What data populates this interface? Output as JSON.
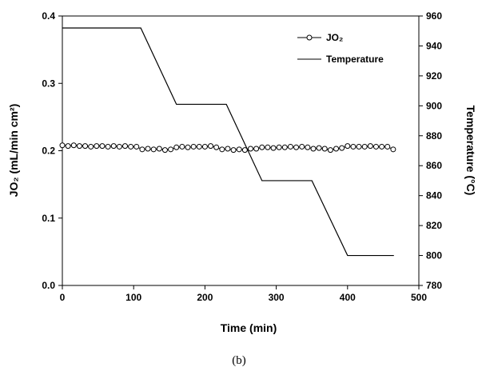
{
  "chart_data": {
    "type": "line",
    "xlabel": "Time (min)",
    "ylabel_left": "JO₂ (mL/min cm²)",
    "ylabel_right": "Temperature (°C)",
    "caption": "(b)",
    "xlim": [
      0,
      500
    ],
    "ylim_left": [
      0.0,
      0.4
    ],
    "ylim_right": [
      780,
      960
    ],
    "x_ticks": [
      "0",
      "100",
      "200",
      "300",
      "400",
      "500"
    ],
    "y_left_ticks": [
      "0.0",
      "0.1",
      "0.2",
      "0.3",
      "0.4"
    ],
    "y_right_ticks": [
      "780",
      "800",
      "820",
      "840",
      "860",
      "880",
      "900",
      "920",
      "940",
      "960"
    ],
    "legend_position": "top-right",
    "series": [
      {
        "name": "JO₂",
        "axis": "left",
        "style": "line-with-circle-markers",
        "x": [
          0,
          8,
          16,
          24,
          32,
          40,
          48,
          56,
          64,
          72,
          80,
          88,
          96,
          104,
          112,
          120,
          128,
          136,
          144,
          152,
          160,
          168,
          176,
          184,
          192,
          200,
          208,
          216,
          224,
          232,
          240,
          248,
          256,
          264,
          272,
          280,
          288,
          296,
          304,
          312,
          320,
          328,
          336,
          344,
          352,
          360,
          368,
          376,
          384,
          392,
          400,
          408,
          416,
          424,
          432,
          440,
          448,
          456,
          464
        ],
        "y": [
          0.208,
          0.207,
          0.208,
          0.207,
          0.207,
          0.206,
          0.207,
          0.207,
          0.206,
          0.207,
          0.206,
          0.207,
          0.206,
          0.206,
          0.202,
          0.203,
          0.202,
          0.203,
          0.201,
          0.202,
          0.205,
          0.206,
          0.205,
          0.206,
          0.206,
          0.206,
          0.207,
          0.205,
          0.202,
          0.203,
          0.201,
          0.202,
          0.201,
          0.203,
          0.203,
          0.205,
          0.205,
          0.204,
          0.205,
          0.205,
          0.206,
          0.205,
          0.206,
          0.205,
          0.203,
          0.204,
          0.203,
          0.201,
          0.203,
          0.204,
          0.207,
          0.206,
          0.206,
          0.206,
          0.207,
          0.206,
          0.206,
          0.206,
          0.202
        ]
      },
      {
        "name": "Temperature",
        "axis": "right",
        "style": "line",
        "x": [
          0,
          110,
          160,
          230,
          280,
          350,
          400,
          465
        ],
        "y": [
          952,
          952,
          901,
          901,
          850,
          850,
          800,
          800
        ]
      }
    ]
  }
}
